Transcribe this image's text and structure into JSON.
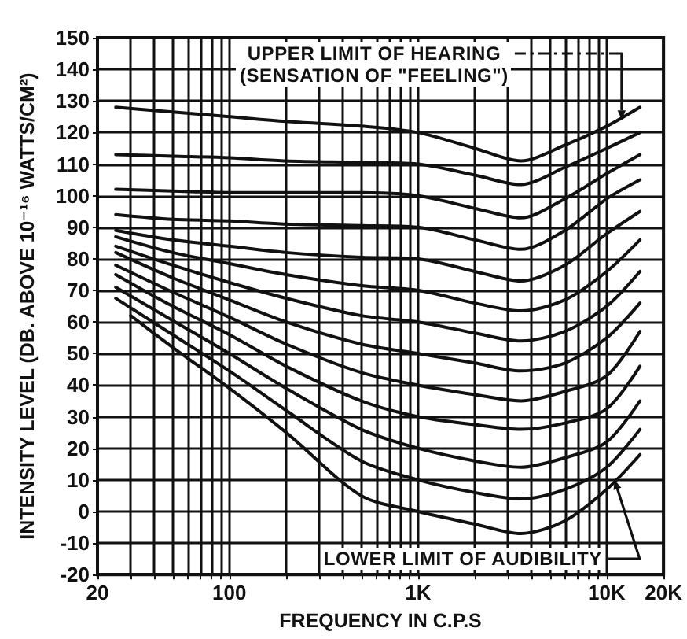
{
  "chart_data": {
    "type": "line",
    "xlabel": "FREQUENCY IN C.P.S",
    "ylabel": "INTENSITY LEVEL (DB. ABOVE 10⁻¹⁶ WATTS/CM²)",
    "annotations": [
      {
        "text": "UPPER LIMIT OF HEARING\n(SENSATION OF \"FEELING\")",
        "x": 12000,
        "y": 124
      },
      {
        "text": "LOWER LIMIT OF AUDIBILITY",
        "x": 11000,
        "y": 10
      }
    ],
    "log": "x",
    "grid": true,
    "x": [
      25,
      50,
      100,
      200,
      500,
      1000,
      2000,
      3500,
      6000,
      10000,
      15000
    ],
    "series": [
      {
        "color": "#111111",
        "values": [
          128,
          126.5,
          125,
          123.5,
          122,
          120,
          115,
          111,
          116,
          122,
          128
        ]
      },
      {
        "color": "#111111",
        "values": [
          113,
          112.5,
          112,
          111,
          110.5,
          110,
          106.5,
          103.5,
          109,
          115,
          120
        ]
      },
      {
        "color": "#111111",
        "values": [
          102,
          101.5,
          101,
          101,
          101,
          100,
          96,
          93,
          99,
          107,
          113
        ]
      },
      {
        "color": "#111111",
        "values": [
          94,
          92.5,
          92,
          91,
          90.5,
          90,
          86,
          83,
          89,
          99,
          105
        ]
      },
      {
        "color": "#111111",
        "values": [
          89,
          86,
          84,
          82,
          80.5,
          80,
          76,
          73,
          78,
          88,
          95
        ]
      },
      {
        "color": "#111111",
        "values": [
          87,
          82,
          78.5,
          75,
          71.5,
          70,
          66,
          63.5,
          67,
          76,
          86
        ]
      },
      {
        "color": "#111111",
        "values": [
          84,
          78,
          72.5,
          67.5,
          62,
          60,
          56.5,
          54,
          57,
          65,
          76
        ]
      },
      {
        "color": "#111111",
        "values": [
          82,
          74,
          67,
          60,
          53,
          50,
          47,
          44.5,
          47,
          55,
          66
        ]
      },
      {
        "color": "#111111",
        "values": [
          78,
          69.5,
          61.5,
          53,
          44,
          40,
          37,
          35,
          38,
          43,
          57
        ]
      },
      {
        "color": "#111111",
        "values": [
          75,
          65,
          56,
          46,
          35,
          30,
          27.5,
          26,
          28,
          32.5,
          46
        ]
      },
      {
        "color": "#111111",
        "values": [
          71,
          60.5,
          50,
          39,
          26,
          20,
          16,
          14,
          17,
          22,
          35
        ]
      },
      {
        "color": "#111111",
        "values": [
          67.5,
          56,
          44.5,
          32,
          16,
          10,
          6,
          4,
          7,
          14,
          26
        ]
      },
      {
        "color": "#111111",
        "x": [
          30,
          50,
          100,
          200,
          500,
          1000,
          2000,
          3500,
          6000,
          10000,
          15000
        ],
        "values": [
          62,
          52,
          39,
          25,
          5,
          0,
          -4,
          -7,
          -3,
          7,
          18
        ]
      }
    ],
    "xlim": [
      20,
      20000
    ],
    "xticks": [
      {
        "value": 20,
        "label": "20"
      },
      {
        "value": 30,
        "label": null
      },
      {
        "value": 40,
        "label": null
      },
      {
        "value": 50,
        "label": null
      },
      {
        "value": 60,
        "label": null
      },
      {
        "value": 70,
        "label": null
      },
      {
        "value": 80,
        "label": null
      },
      {
        "value": 90,
        "label": null
      },
      {
        "value": 100,
        "label": "100"
      },
      {
        "value": 200,
        "label": null
      },
      {
        "value": 300,
        "label": null
      },
      {
        "value": 400,
        "label": null
      },
      {
        "value": 500,
        "label": null
      },
      {
        "value": 600,
        "label": null
      },
      {
        "value": 700,
        "label": null
      },
      {
        "value": 800,
        "label": null
      },
      {
        "value": 900,
        "label": null
      },
      {
        "value": 1000,
        "label": "1K"
      },
      {
        "value": 2000,
        "label": null
      },
      {
        "value": 3000,
        "label": null
      },
      {
        "value": 4000,
        "label": null
      },
      {
        "value": 5000,
        "label": null
      },
      {
        "value": 6000,
        "label": null
      },
      {
        "value": 7000,
        "label": null
      },
      {
        "value": 8000,
        "label": null
      },
      {
        "value": 9000,
        "label": null
      },
      {
        "value": 10000,
        "label": "10K"
      },
      {
        "value": 20000,
        "label": "20K"
      }
    ],
    "ylim": [
      -20,
      150
    ],
    "yticks": [
      -20,
      -10,
      0,
      10,
      20,
      30,
      40,
      50,
      60,
      70,
      80,
      90,
      100,
      110,
      120,
      130,
      140,
      150
    ]
  }
}
